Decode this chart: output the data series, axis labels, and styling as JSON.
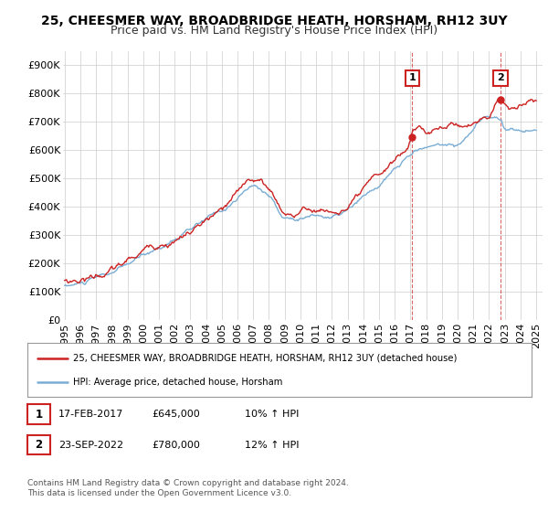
{
  "title": "25, CHEESMER WAY, BROADBRIDGE HEATH, HORSHAM, RH12 3UY",
  "subtitle": "Price paid vs. HM Land Registry's House Price Index (HPI)",
  "ylabel_ticks": [
    "£0",
    "£100K",
    "£200K",
    "£300K",
    "£400K",
    "£500K",
    "£600K",
    "£700K",
    "£800K",
    "£900K"
  ],
  "ytick_values": [
    0,
    100000,
    200000,
    300000,
    400000,
    500000,
    600000,
    700000,
    800000,
    900000
  ],
  "ylim": [
    0,
    950000
  ],
  "xlim_start": 1994.9,
  "xlim_end": 2025.4,
  "red_color": "#cc2222",
  "blue_color": "#7aadd4",
  "marker1_x": 2017.12,
  "marker1_y": 645000,
  "marker2_x": 2022.73,
  "marker2_y": 780000,
  "legend_label_red": "25, CHEESMER WAY, BROADBRIDGE HEATH, HORSHAM, RH12 3UY (detached house)",
  "legend_label_blue": "HPI: Average price, detached house, Horsham",
  "note1_date": "17-FEB-2017",
  "note1_price": "£645,000",
  "note1_hpi": "10% ↑ HPI",
  "note2_date": "23-SEP-2022",
  "note2_price": "£780,000",
  "note2_hpi": "12% ↑ HPI",
  "footer": "Contains HM Land Registry data © Crown copyright and database right 2024.\nThis data is licensed under the Open Government Licence v3.0.",
  "background_color": "#ffffff",
  "grid_color": "#cccccc",
  "title_fontsize": 10,
  "subtitle_fontsize": 9,
  "tick_fontsize": 8
}
